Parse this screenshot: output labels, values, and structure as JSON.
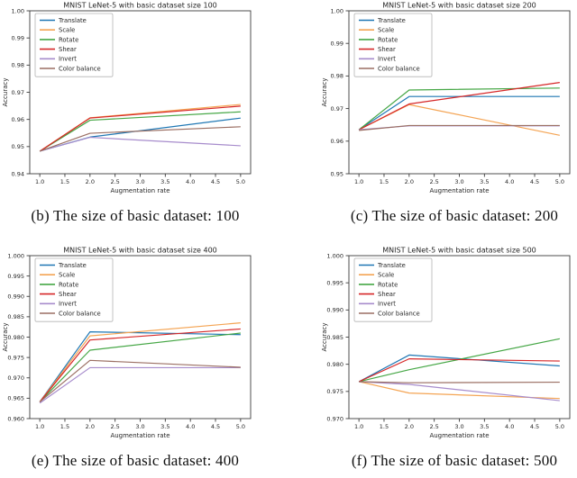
{
  "figure": {
    "background": "#ffffff",
    "axis_color": "#3c3c3c",
    "text_color": "#262626"
  },
  "chart_data": [
    {
      "type": "line",
      "title": "MNIST LeNet-5 with basic dataset size 100",
      "xlabel": "Augmentation rate",
      "ylabel": "Accuracy",
      "xlim": [
        0.8,
        5.2
      ],
      "ylim": [
        0.94,
        1.0
      ],
      "grid": false,
      "legend_position": "upper left",
      "xtick_values": [
        1.0,
        1.5,
        2.0,
        2.5,
        3.0,
        3.5,
        4.0,
        4.5,
        5.0
      ],
      "xtick_labels": [
        "1.0",
        "1.5",
        "2.0",
        "2.5",
        "3.0",
        "3.5",
        "4.0",
        "4.5",
        "5.0"
      ],
      "ytick_values": [
        0.94,
        0.95,
        0.96,
        0.97,
        0.98,
        0.99,
        1.0
      ],
      "ytick_labels": [
        "0.94",
        "0.95",
        "0.96",
        "0.97",
        "0.98",
        "0.99",
        "1.00"
      ],
      "x": [
        1.0,
        2.0,
        5.0
      ],
      "series": [
        {
          "name": "Translate",
          "color": "#1f77b4",
          "values": [
            0.9483,
            0.9535,
            0.9605
          ]
        },
        {
          "name": "Scale",
          "color": "#f4a453",
          "values": [
            0.9483,
            0.9606,
            0.9655
          ]
        },
        {
          "name": "Rotate",
          "color": "#46a746",
          "values": [
            0.9483,
            0.9597,
            0.9628
          ]
        },
        {
          "name": "Shear",
          "color": "#d62728",
          "values": [
            0.9483,
            0.9605,
            0.9649
          ]
        },
        {
          "name": "Invert",
          "color": "#a78ccc",
          "values": [
            0.9483,
            0.9534,
            0.9503
          ]
        },
        {
          "name": "Color balance",
          "color": "#9b6f63",
          "values": [
            0.9483,
            0.9549,
            0.9573
          ]
        }
      ],
      "caption": "(b) The size of basic dataset: 100"
    },
    {
      "type": "line",
      "title": "MNIST LeNet-5 with basic dataset size 200",
      "xlabel": "Augmentation rate",
      "ylabel": "Accuracy",
      "xlim": [
        0.8,
        5.2
      ],
      "ylim": [
        0.95,
        1.0
      ],
      "grid": false,
      "legend_position": "upper left",
      "xtick_values": [
        1.0,
        1.5,
        2.0,
        2.5,
        3.0,
        3.5,
        4.0,
        4.5,
        5.0
      ],
      "xtick_labels": [
        "1.0",
        "1.5",
        "2.0",
        "2.5",
        "3.0",
        "3.5",
        "4.0",
        "4.5",
        "5.0"
      ],
      "ytick_values": [
        0.95,
        0.96,
        0.97,
        0.98,
        0.99,
        1.0
      ],
      "ytick_labels": [
        "0.95",
        "0.96",
        "0.97",
        "0.98",
        "0.99",
        "1.00"
      ],
      "x": [
        1.0,
        2.0,
        5.0
      ],
      "series": [
        {
          "name": "Translate",
          "color": "#1f77b4",
          "values": [
            0.9635,
            0.9737,
            0.9737
          ]
        },
        {
          "name": "Scale",
          "color": "#f4a453",
          "values": [
            0.9635,
            0.9712,
            0.9618
          ]
        },
        {
          "name": "Rotate",
          "color": "#46a746",
          "values": [
            0.9635,
            0.9757,
            0.9763
          ]
        },
        {
          "name": "Shear",
          "color": "#d62728",
          "values": [
            0.9635,
            0.9714,
            0.978
          ]
        },
        {
          "name": "Invert",
          "color": "#a78ccc",
          "values": [
            0.9635,
            0.9647,
            0.9647
          ]
        },
        {
          "name": "Color balance",
          "color": "#9b6f63",
          "values": [
            0.9633,
            0.9648,
            0.9648
          ]
        }
      ],
      "caption": "(c) The size of basic dataset: 200"
    },
    {
      "type": "line",
      "title": "MNIST LeNet-5 with basic dataset size 400",
      "xlabel": "Augmentation rate",
      "ylabel": "Accuracy",
      "xlim": [
        0.8,
        5.2
      ],
      "ylim": [
        0.96,
        1.0
      ],
      "grid": false,
      "legend_position": "upper left",
      "xtick_values": [
        1.0,
        1.5,
        2.0,
        2.5,
        3.0,
        3.5,
        4.0,
        4.5,
        5.0
      ],
      "xtick_labels": [
        "1.0",
        "1.5",
        "2.0",
        "2.5",
        "3.0",
        "3.5",
        "4.0",
        "4.5",
        "5.0"
      ],
      "ytick_values": [
        0.96,
        0.965,
        0.97,
        0.975,
        0.98,
        0.985,
        0.99,
        0.995,
        1.0
      ],
      "ytick_labels": [
        "0.960",
        "0.965",
        "0.970",
        "0.975",
        "0.980",
        "0.985",
        "0.990",
        "0.995",
        "1.000"
      ],
      "x": [
        1.0,
        2.0,
        5.0
      ],
      "series": [
        {
          "name": "Translate",
          "color": "#1f77b4",
          "values": [
            0.9641,
            0.9813,
            0.9806
          ]
        },
        {
          "name": "Scale",
          "color": "#f4a453",
          "values": [
            0.9641,
            0.9803,
            0.9835
          ]
        },
        {
          "name": "Rotate",
          "color": "#46a746",
          "values": [
            0.9641,
            0.9768,
            0.981
          ]
        },
        {
          "name": "Shear",
          "color": "#d62728",
          "values": [
            0.9641,
            0.9793,
            0.982
          ]
        },
        {
          "name": "Invert",
          "color": "#a78ccc",
          "values": [
            0.9638,
            0.9725,
            0.9725
          ]
        },
        {
          "name": "Color balance",
          "color": "#9b6f63",
          "values": [
            0.9641,
            0.9743,
            0.9726
          ]
        }
      ],
      "caption": "(e) The size of basic dataset: 400"
    },
    {
      "type": "line",
      "title": "MNIST LeNet-5 with basic dataset size 500",
      "xlabel": "Augmentation rate",
      "ylabel": "Accuracy",
      "xlim": [
        0.8,
        5.2
      ],
      "ylim": [
        0.97,
        1.0
      ],
      "grid": false,
      "legend_position": "upper left",
      "xtick_values": [
        1.0,
        1.5,
        2.0,
        2.5,
        3.0,
        3.5,
        4.0,
        4.5,
        5.0
      ],
      "xtick_labels": [
        "1.0",
        "1.5",
        "2.0",
        "2.5",
        "3.0",
        "3.5",
        "4.0",
        "4.5",
        "5.0"
      ],
      "ytick_values": [
        0.97,
        0.975,
        0.98,
        0.985,
        0.99,
        0.995,
        1.0
      ],
      "ytick_labels": [
        "0.970",
        "0.975",
        "0.980",
        "0.985",
        "0.990",
        "0.995",
        "1.000"
      ],
      "x": [
        1.0,
        2.0,
        5.0
      ],
      "series": [
        {
          "name": "Translate",
          "color": "#1f77b4",
          "values": [
            0.9768,
            0.9817,
            0.9797
          ]
        },
        {
          "name": "Scale",
          "color": "#f4a453",
          "values": [
            0.9768,
            0.9747,
            0.9737
          ]
        },
        {
          "name": "Rotate",
          "color": "#46a746",
          "values": [
            0.9768,
            0.979,
            0.9847
          ]
        },
        {
          "name": "Shear",
          "color": "#d62728",
          "values": [
            0.9768,
            0.981,
            0.9806
          ]
        },
        {
          "name": "Invert",
          "color": "#a78ccc",
          "values": [
            0.9768,
            0.9763,
            0.9733
          ]
        },
        {
          "name": "Color balance",
          "color": "#9b6f63",
          "values": [
            0.9768,
            0.9766,
            0.9767
          ]
        }
      ],
      "caption": "(f) The size of basic dataset: 500"
    }
  ]
}
